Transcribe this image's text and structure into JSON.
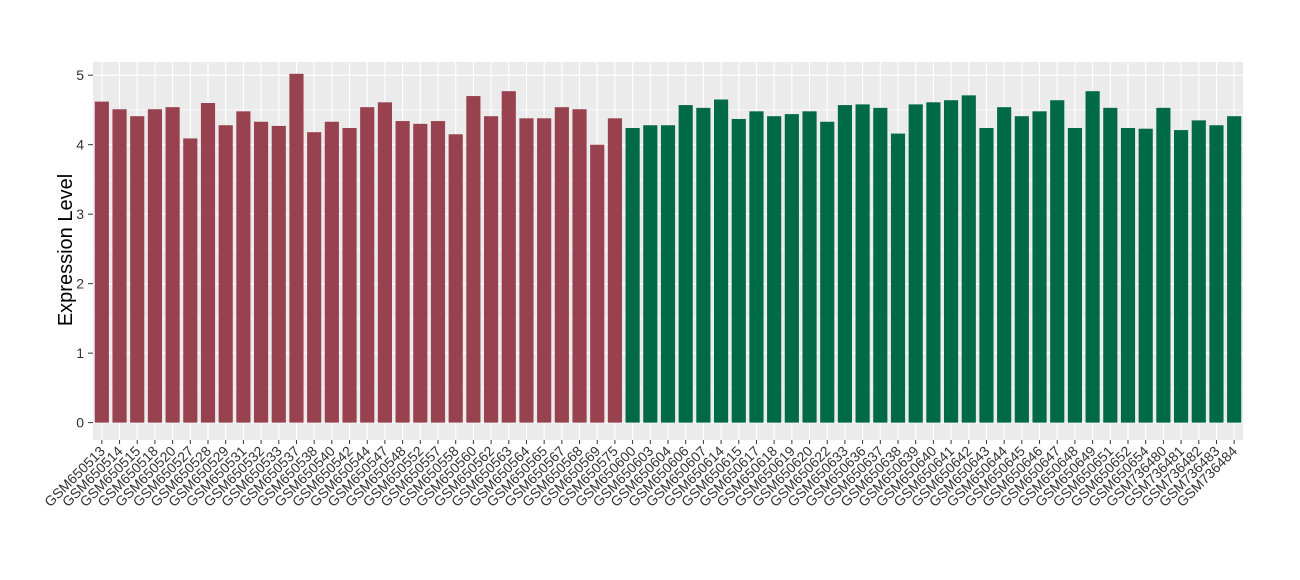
{
  "chart_data": {
    "type": "bar",
    "y_label": "Expression Level",
    "categories": [
      "GSM650513",
      "GSM650514",
      "GSM650515",
      "GSM650518",
      "GSM650520",
      "GSM650527",
      "GSM650528",
      "GSM650529",
      "GSM650531",
      "GSM650532",
      "GSM650533",
      "GSM650537",
      "GSM650538",
      "GSM650540",
      "GSM650542",
      "GSM650544",
      "GSM650547",
      "GSM650548",
      "GSM650552",
      "GSM650557",
      "GSM650558",
      "GSM650560",
      "GSM650562",
      "GSM650563",
      "GSM650564",
      "GSM650565",
      "GSM650567",
      "GSM650568",
      "GSM650569",
      "GSM650575",
      "GSM650600",
      "GSM650603",
      "GSM650604",
      "GSM650606",
      "GSM650607",
      "GSM650614",
      "GSM650615",
      "GSM650617",
      "GSM650618",
      "GSM650619",
      "GSM650620",
      "GSM650622",
      "GSM650633",
      "GSM650636",
      "GSM650637",
      "GSM650638",
      "GSM650639",
      "GSM650640",
      "GSM650641",
      "GSM650642",
      "GSM650643",
      "GSM650644",
      "GSM650645",
      "GSM650646",
      "GSM650647",
      "GSM650648",
      "GSM650649",
      "GSM650651",
      "GSM650652",
      "GSM650654",
      "GSM736480",
      "GSM736481",
      "GSM736482",
      "GSM736483",
      "GSM736484"
    ],
    "values": [
      4.62,
      4.51,
      4.41,
      4.51,
      4.54,
      4.09,
      4.6,
      4.28,
      4.48,
      4.33,
      4.27,
      5.02,
      4.18,
      4.33,
      4.24,
      4.54,
      4.61,
      4.34,
      4.3,
      4.34,
      4.15,
      4.7,
      4.41,
      4.77,
      4.38,
      4.38,
      4.54,
      4.51,
      4.0,
      4.38,
      4.24,
      4.28,
      4.28,
      4.57,
      4.53,
      4.65,
      4.37,
      4.48,
      4.41,
      4.44,
      4.48,
      4.33,
      4.57,
      4.58,
      4.53,
      4.16,
      4.58,
      4.61,
      4.64,
      4.71,
      4.24,
      4.54,
      4.41,
      4.48,
      4.64,
      4.24,
      4.77,
      4.53,
      4.24,
      4.23,
      4.53,
      4.21,
      4.35,
      4.28,
      4.41
    ],
    "bar_colors": [
      "#99424f",
      "#99424f",
      "#99424f",
      "#99424f",
      "#99424f",
      "#99424f",
      "#99424f",
      "#99424f",
      "#99424f",
      "#99424f",
      "#99424f",
      "#99424f",
      "#99424f",
      "#99424f",
      "#99424f",
      "#99424f",
      "#99424f",
      "#99424f",
      "#99424f",
      "#99424f",
      "#99424f",
      "#99424f",
      "#99424f",
      "#99424f",
      "#99424f",
      "#99424f",
      "#99424f",
      "#99424f",
      "#99424f",
      "#99424f",
      "#006a46",
      "#006a46",
      "#006a46",
      "#006a46",
      "#006a46",
      "#006a46",
      "#006a46",
      "#006a46",
      "#006a46",
      "#006a46",
      "#006a46",
      "#006a46",
      "#006a46",
      "#006a46",
      "#006a46",
      "#006a46",
      "#006a46",
      "#006a46",
      "#006a46",
      "#006a46",
      "#006a46",
      "#006a46",
      "#006a46",
      "#006a46",
      "#006a46",
      "#006a46",
      "#006a46",
      "#006a46",
      "#006a46",
      "#006a46",
      "#006a46",
      "#006a46",
      "#006a46",
      "#006a46",
      "#006a46"
    ],
    "ylim": [
      -0.25,
      5.19
    ],
    "yticks": [
      0,
      1,
      2,
      3,
      4,
      5
    ],
    "grid": true
  }
}
